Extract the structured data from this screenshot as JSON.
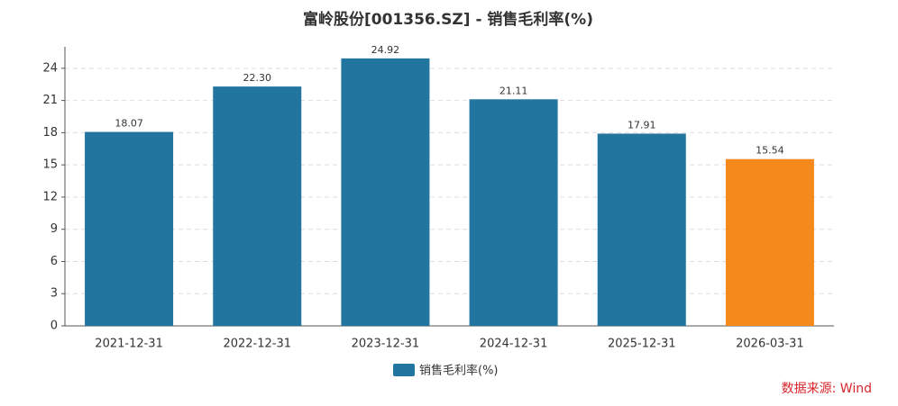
{
  "chart_data": {
    "type": "bar",
    "title": "富岭股份[001356.SZ] - 销售毛利率(%)",
    "categories": [
      "2021-12-31",
      "2022-12-31",
      "2023-12-31",
      "2024-12-31",
      "2025-12-31",
      "2026-03-31"
    ],
    "series": [
      {
        "name": "销售毛利率(%)",
        "color": "#21759f",
        "values": [
          18.07,
          22.3,
          24.92,
          21.11,
          17.91,
          15.54
        ],
        "value_labels": [
          "18.07",
          "22.30",
          "24.92",
          "21.11",
          "17.91",
          "15.54"
        ],
        "colors": [
          "#21759f",
          "#21759f",
          "#21759f",
          "#21759f",
          "#21759f",
          "#f5891b"
        ]
      }
    ],
    "ylim": [
      0,
      26
    ],
    "yticks": [
      0,
      3,
      6,
      9,
      12,
      15,
      18,
      21,
      24
    ],
    "grid": true,
    "legend": "bottom",
    "source": "数据来源: Wind"
  }
}
